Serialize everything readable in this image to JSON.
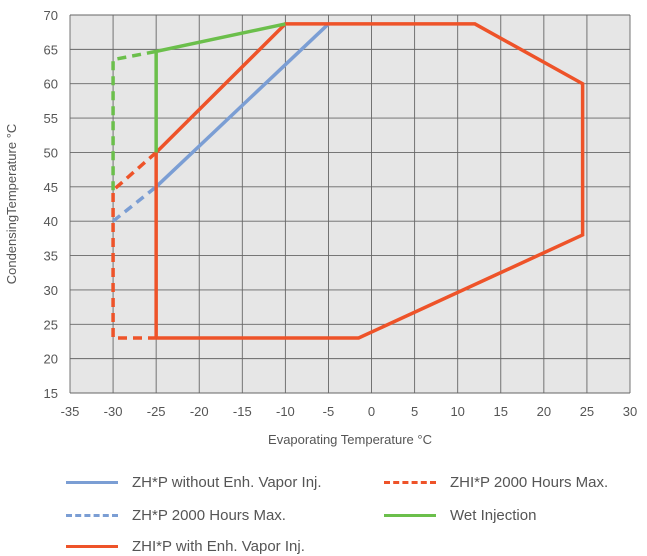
{
  "chart_data": {
    "type": "line",
    "xlabel": "Evaporating Temperature °C",
    "ylabel": "CondensingTemperature °C",
    "xlim": [
      -35,
      30
    ],
    "ylim": [
      15,
      70
    ],
    "xticks": [
      "-35",
      "-30",
      "-25",
      "-20",
      "-15",
      "-10",
      "-5",
      "0",
      "5",
      "10",
      "15",
      "20",
      "25",
      "30"
    ],
    "yticks": [
      "15",
      "20",
      "25",
      "30",
      "35",
      "40",
      "45",
      "50",
      "55",
      "60",
      "65",
      "70"
    ],
    "grid": true,
    "legend_position": "bottom",
    "series": [
      {
        "name": "ZH*P without Enh. Vapor Inj.",
        "color": "#7b9ed4",
        "dash": "solid",
        "x": [
          -25,
          -5
        ],
        "y": [
          45,
          68.7
        ]
      },
      {
        "name": "ZH*P 2000 Hours Max.",
        "color": "#7b9ed4",
        "dash": "dashed",
        "x": [
          -30,
          -25
        ],
        "y": [
          40,
          45
        ]
      },
      {
        "name": "ZHI*P with Enh. Vapor Inj.",
        "color": "#ee5329",
        "dash": "solid",
        "x": [
          -25,
          -25,
          -10,
          12,
          24.5,
          24.5,
          -1.5,
          -25
        ],
        "y": [
          23,
          50,
          68.7,
          68.7,
          60,
          38,
          23,
          23
        ]
      },
      {
        "name": "ZHI*P 2000 Hours Max.",
        "color": "#ee5329",
        "dash": "dashed",
        "x": [
          -25,
          -30,
          -30,
          -25
        ],
        "y": [
          50,
          44.5,
          23,
          23
        ]
      },
      {
        "name": "Wet Injection",
        "color": "#6bbf4b",
        "dash": "solid",
        "x": [
          -25,
          -25,
          -10
        ],
        "y": [
          50,
          64.7,
          68.7
        ]
      },
      {
        "name": "",
        "color": "#6bbf4b",
        "dash": "dashed",
        "x": [
          -30,
          -30,
          -25
        ],
        "y": [
          44.5,
          63.5,
          64.7
        ]
      }
    ]
  },
  "legend": [
    {
      "label": "ZH*P without Enh. Vapor Inj.",
      "color": "#7b9ed4",
      "dash": "solid"
    },
    {
      "label": "ZHI*P 2000 Hours Max.",
      "color": "#ee5329",
      "dash": "dashed"
    },
    {
      "label": "ZH*P 2000 Hours Max.",
      "color": "#7b9ed4",
      "dash": "dashed"
    },
    {
      "label": "Wet Injection",
      "color": "#6bbf4b",
      "dash": "solid"
    },
    {
      "label": "ZHI*P with Enh. Vapor Inj.",
      "color": "#ee5329",
      "dash": "solid"
    }
  ]
}
